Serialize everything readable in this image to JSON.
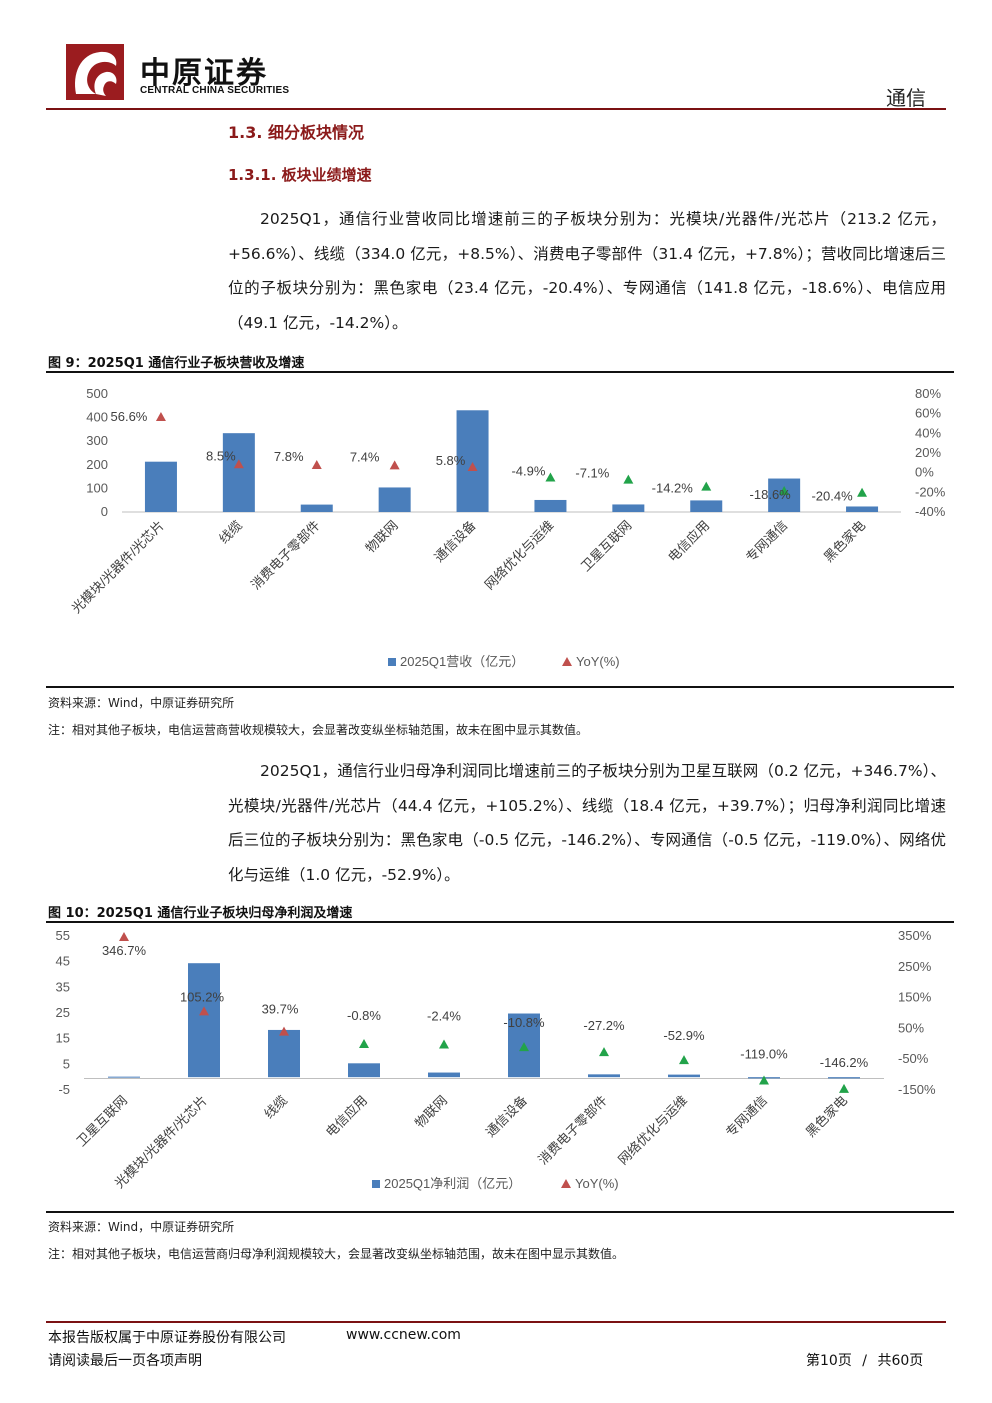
{
  "header": {
    "brand_cn": "中原证券",
    "brand_en": "CENTRAL CHINA SECURITIES",
    "sector": "通信"
  },
  "section": {
    "h2": "1.3. 细分板块情况",
    "h3": "1.3.1. 板块业绩增速"
  },
  "para1": "2025Q1，通信行业营收同比增速前三的子板块分别为：光模块/光器件/光芯片（213.2 亿元，+56.6%）、线缆（334.0 亿元，+8.5%）、消费电子零部件（31.4 亿元，+7.8%）；营收同比增速后三位的子板块分别为：黑色家电（23.4 亿元，-20.4%）、专网通信（141.8 亿元，-18.6%）、电信应用（49.1 亿元，-14.2%）。",
  "para2": "2025Q1，通信行业归母净利润同比增速前三的子板块分别为卫星互联网（0.2 亿元，+346.7%）、光模块/光器件/光芯片（44.4 亿元，+105.2%）、线缆（18.4 亿元，+39.7%）；归母净利润同比增速后三位的子板块分别为：黑色家电（-0.5 亿元，-146.2%）、专网通信（-0.5 亿元，-119.0%）、网络优化与运维（1.0 亿元，-52.9%）。",
  "fig9": {
    "title": "图 9：2025Q1 通信行业子板块营收及增速",
    "source": "资料来源：Wind，中原证券研究所",
    "note": "注：相对其他子板块，电信运营商营收规模较大，会显著改变纵坐标轴范围，故未在图中显示其数值。"
  },
  "fig10": {
    "title": "图 10：2025Q1 通信行业子板块归母净利润及增速",
    "source": "资料来源：Wind，中原证券研究所",
    "note": "注：相对其他子板块，电信运营商归母净利润规模较大，会显著改变纵坐标轴范围，故未在图中显示其数值。"
  },
  "colors": {
    "bar": "#4a7ebb",
    "up": "#c0504d",
    "down": "#22a34a",
    "accent": "#8b1a1a"
  },
  "chart_data": [
    {
      "type": "bar",
      "categories": [
        "光模块/光器件/光芯片",
        "线缆",
        "消费电子零部件",
        "物联网",
        "通信设备",
        "网络优化与运维",
        "卫星互联网",
        "电信应用",
        "专网通信",
        "黑色家电"
      ],
      "series": [
        {
          "name": "2025Q1营收（亿元）",
          "type": "bar",
          "axis": "left",
          "values": [
            213.2,
            334.0,
            31.4,
            104,
            431,
            51,
            32,
            49.1,
            141.8,
            23.4
          ]
        },
        {
          "name": "YoY(%)",
          "type": "scatter",
          "axis": "right",
          "values": [
            56.6,
            8.5,
            7.8,
            7.4,
            5.8,
            -4.9,
            -7.1,
            -14.2,
            -18.6,
            -20.4
          ]
        }
      ],
      "yoy_labels": [
        "56.6%",
        "8.5%",
        "7.8%",
        "7.4%",
        "5.8%",
        "-4.9%",
        "-7.1%",
        "-14.2%",
        "-18.6%",
        "-20.4%"
      ],
      "left_ticks": [
        "0",
        "100",
        "200",
        "300",
        "400",
        "500"
      ],
      "right_ticks": [
        "-40%",
        "-20%",
        "0%",
        "20%",
        "40%",
        "60%",
        "80%"
      ],
      "ylim_left": [
        0,
        500
      ],
      "ylim_right": [
        -40,
        80
      ]
    },
    {
      "type": "bar",
      "categories": [
        "卫星互联网",
        "光模块/光器件/光芯片",
        "线缆",
        "电信应用",
        "物联网",
        "通信设备",
        "消费电子零部件",
        "网络优化与运维",
        "专网通信",
        "黑色家电"
      ],
      "series": [
        {
          "name": "2025Q1净利润（亿元）",
          "type": "bar",
          "axis": "left",
          "values": [
            0.2,
            44.4,
            18.4,
            5.4,
            1.8,
            24.8,
            1.1,
            1.0,
            -0.5,
            -0.5
          ]
        },
        {
          "name": "YoY(%)",
          "type": "scatter",
          "axis": "right",
          "values": [
            346.7,
            105.2,
            39.7,
            -0.8,
            -2.4,
            -10.8,
            -27.2,
            -52.9,
            -119.0,
            -146.2
          ]
        }
      ],
      "yoy_labels": [
        "346.7%",
        "105.2%",
        "39.7%",
        "-0.8%",
        "-2.4%",
        "-10.8%",
        "-27.2%",
        "-52.9%",
        "-119.0%",
        "-146.2%"
      ],
      "left_ticks": [
        "-5",
        "5",
        "15",
        "25",
        "35",
        "45",
        "55"
      ],
      "right_ticks": [
        "-150%",
        "-50%",
        "50%",
        "150%",
        "250%",
        "350%"
      ],
      "ylim_left": [
        -5,
        55
      ],
      "ylim_right": [
        -150,
        350
      ]
    }
  ],
  "footer": {
    "copyright": "本报告版权属于中原证券股份有限公司",
    "website": "www.ccnew.com",
    "disclaimer": "请阅读最后一页各项声明",
    "page": "第10页",
    "sep": "/",
    "total": "共60页"
  }
}
